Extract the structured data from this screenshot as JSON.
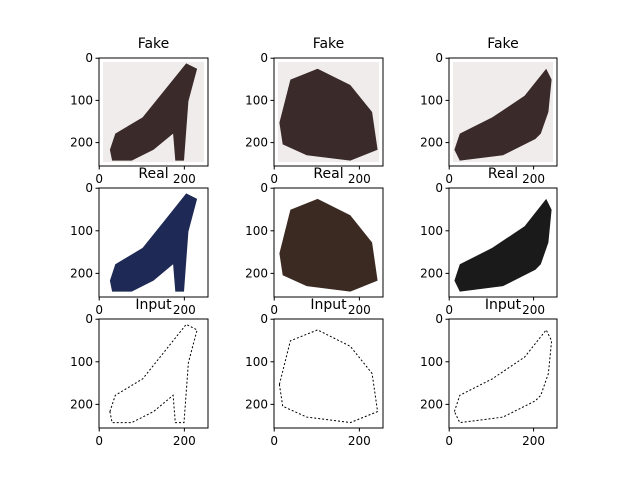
{
  "chart_data": [
    {
      "type": "image",
      "title": "Fake",
      "xlim": [
        -0.5,
        255.5
      ],
      "ylim": [
        255.5,
        -0.5
      ],
      "xticks": [
        0,
        200
      ],
      "yticks": [
        0,
        100,
        200
      ]
    },
    {
      "type": "image",
      "title": "Fake",
      "xlim": [
        -0.5,
        255.5
      ],
      "ylim": [
        255.5,
        -0.5
      ],
      "xticks": [
        0,
        200
      ],
      "yticks": [
        0,
        100,
        200
      ]
    },
    {
      "type": "image",
      "title": "Fake",
      "xlim": [
        -0.5,
        255.5
      ],
      "ylim": [
        255.5,
        -0.5
      ],
      "xticks": [
        0,
        200
      ],
      "yticks": [
        0,
        100,
        200
      ]
    },
    {
      "type": "image",
      "title": "Real",
      "xlim": [
        -0.5,
        255.5
      ],
      "ylim": [
        255.5,
        -0.5
      ],
      "xticks": [
        0,
        200
      ],
      "yticks": [
        0,
        100,
        200
      ]
    },
    {
      "type": "image",
      "title": "Real",
      "xlim": [
        -0.5,
        255.5
      ],
      "ylim": [
        255.5,
        -0.5
      ],
      "xticks": [
        0,
        200
      ],
      "yticks": [
        0,
        100,
        200
      ]
    },
    {
      "type": "image",
      "title": "Real",
      "xlim": [
        -0.5,
        255.5
      ],
      "ylim": [
        255.5,
        -0.5
      ],
      "xticks": [
        0,
        200
      ],
      "yticks": [
        0,
        100,
        200
      ]
    },
    {
      "type": "image",
      "title": "Input",
      "xlim": [
        -0.5,
        255.5
      ],
      "ylim": [
        255.5,
        -0.5
      ],
      "xticks": [
        0,
        200
      ],
      "yticks": [
        0,
        100,
        200
      ]
    },
    {
      "type": "image",
      "title": "Input",
      "xlim": [
        -0.5,
        255.5
      ],
      "ylim": [
        255.5,
        -0.5
      ],
      "xticks": [
        0,
        200
      ],
      "yticks": [
        0,
        100,
        200
      ]
    },
    {
      "type": "image",
      "title": "Input",
      "xlim": [
        -0.5,
        255.5
      ],
      "ylim": [
        255.5,
        -0.5
      ],
      "xticks": [
        0,
        200
      ],
      "yticks": [
        0,
        100,
        200
      ]
    }
  ]
}
